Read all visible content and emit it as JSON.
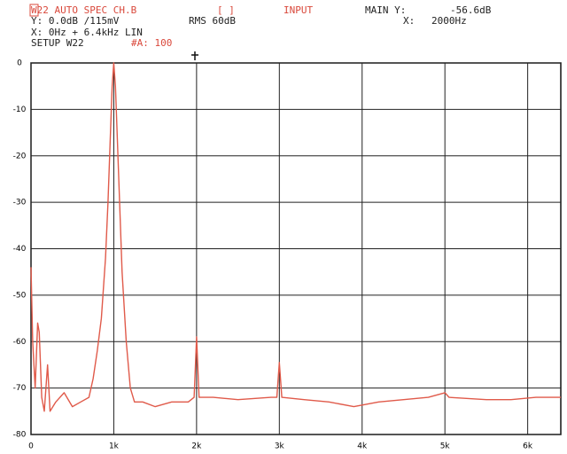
{
  "chart_data": {
    "type": "line",
    "annotations": [
      {
        "text": "W22 AUTO SPEC CH.B",
        "color": "#d9483b"
      },
      {
        "text": "[ ]",
        "color": "#d9483b"
      },
      {
        "text": "INPUT",
        "color": "#d9483b"
      },
      {
        "text": "MAIN  Y:",
        "color": "#222222"
      },
      {
        "text": "-56.6dB",
        "color": "#222222"
      },
      {
        "text": "Y:   0.0dB /115mV",
        "color": "#222222"
      },
      {
        "text": "RMS  60dB",
        "color": "#222222"
      },
      {
        "text": "X:",
        "color": "#222222"
      },
      {
        "text": "2000Hz",
        "color": "#222222"
      },
      {
        "text": "X:  0Hz + 6.4kHz    LIN",
        "color": "#222222"
      },
      {
        "text": "SETUP W22",
        "color": "#222222"
      },
      {
        "text": "#A: 100",
        "color": "#d9483b"
      }
    ],
    "x": [
      0,
      20,
      50,
      80,
      100,
      130,
      160,
      200,
      230,
      300,
      400,
      500,
      600,
      700,
      750,
      800,
      850,
      900,
      930,
      960,
      980,
      1000,
      1020,
      1040,
      1070,
      1100,
      1150,
      1200,
      1250,
      1350,
      1500,
      1700,
      1900,
      1970,
      2000,
      2030,
      2200,
      2500,
      2900,
      2970,
      3000,
      3030,
      3300,
      3600,
      3900,
      4200,
      4500,
      4800,
      5000,
      5050,
      5500,
      5800,
      6100,
      6400
    ],
    "values": [
      -44,
      -60,
      -70,
      -56,
      -58,
      -72,
      -75,
      -65,
      -75,
      -73,
      -71,
      -74,
      -73,
      -72,
      -68,
      -62,
      -55,
      -42,
      -30,
      -15,
      -5,
      0,
      -5,
      -15,
      -30,
      -45,
      -60,
      -70,
      -73,
      -73,
      -74,
      -73,
      -73,
      -72,
      -59,
      -72,
      -72,
      -72.5,
      -72,
      -72,
      -64.5,
      -72,
      -72.5,
      -73,
      -74,
      -73,
      -72.5,
      -72,
      -71,
      -72,
      -72.5,
      -72.5,
      -72,
      -72
    ],
    "color": "#e05a4a",
    "xlim": [
      0,
      6400
    ],
    "ylim": [
      -80,
      0
    ],
    "xticks": [
      0,
      {
        "value": 1000,
        "label": "1k"
      },
      {
        "value": 2000,
        "label": "2k"
      },
      {
        "value": 3000,
        "label": "3k"
      },
      {
        "value": 4000,
        "label": "4k"
      },
      {
        "value": 5000,
        "label": "5k"
      },
      {
        "value": 6000,
        "label": "6k"
      }
    ],
    "yticks": [
      0,
      -10,
      -20,
      -30,
      -40,
      -50,
      -60,
      -70,
      -80
    ],
    "grid": true
  }
}
